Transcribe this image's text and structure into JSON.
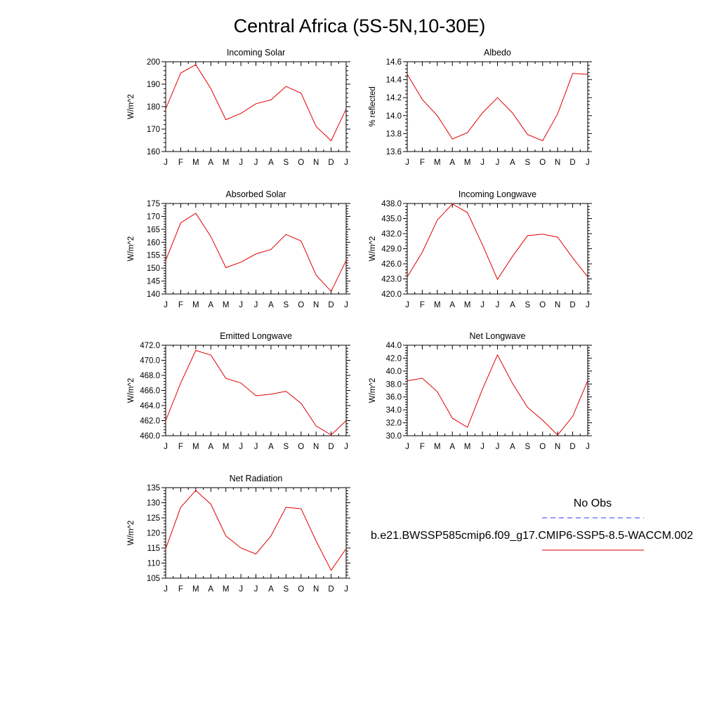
{
  "title": "Central Africa (5S-5N,10-30E)",
  "colors": {
    "model_line": "#e00000",
    "obs_line": "#3333ff",
    "axis": "#000000"
  },
  "legend": {
    "obs_label": "No Obs",
    "model_label": "b.e21.BWSSP585cmip6.f09_g17.CMIP6-SSP5-8.5-WACCM.002"
  },
  "chart_data": [
    {
      "type": "line",
      "title": "Incoming Solar",
      "xlabel": "",
      "ylabel": "W/m^2",
      "categories": [
        "J",
        "F",
        "M",
        "A",
        "M",
        "J",
        "J",
        "A",
        "S",
        "O",
        "N",
        "D",
        "J"
      ],
      "values": [
        179,
        195,
        198.7,
        188,
        174.2,
        177,
        181.3,
        183,
        189,
        186,
        171.2,
        164.8,
        179
      ],
      "ylim": [
        160,
        200
      ],
      "yticks": [
        160,
        170,
        180,
        190,
        200
      ],
      "ytick_labels": [
        "160",
        "170",
        "180",
        "190",
        "200"
      ],
      "grid": false
    },
    {
      "type": "line",
      "title": "Albedo",
      "xlabel": "",
      "ylabel": "% reflected",
      "categories": [
        "J",
        "F",
        "M",
        "A",
        "M",
        "J",
        "J",
        "A",
        "S",
        "O",
        "N",
        "D",
        "J"
      ],
      "values": [
        14.46,
        14.18,
        14.0,
        13.74,
        13.81,
        14.03,
        14.2,
        14.03,
        13.79,
        13.72,
        14.02,
        14.47,
        14.46
      ],
      "ylim": [
        13.6,
        14.6
      ],
      "yticks": [
        13.6,
        13.8,
        14.0,
        14.2,
        14.4,
        14.6
      ],
      "ytick_labels": [
        "13.6",
        "13.8",
        "14.0",
        "14.2",
        "14.4",
        "14.6"
      ],
      "grid": false
    },
    {
      "type": "line",
      "title": "Absorbed Solar",
      "xlabel": "",
      "ylabel": "W/m^2",
      "categories": [
        "J",
        "F",
        "M",
        "A",
        "M",
        "J",
        "J",
        "A",
        "S",
        "O",
        "N",
        "D",
        "J"
      ],
      "values": [
        153,
        167.5,
        171.2,
        162.2,
        150.2,
        152.3,
        155.5,
        157.2,
        163,
        160.5,
        147.3,
        141,
        153
      ],
      "ylim": [
        140,
        175
      ],
      "yticks": [
        140,
        145,
        150,
        155,
        160,
        165,
        170,
        175
      ],
      "ytick_labels": [
        "140",
        "145",
        "150",
        "155",
        "160",
        "165",
        "170",
        "175"
      ],
      "grid": false
    },
    {
      "type": "line",
      "title": "Incoming Longwave",
      "xlabel": "",
      "ylabel": "W/m^2",
      "categories": [
        "J",
        "F",
        "M",
        "A",
        "M",
        "J",
        "J",
        "A",
        "S",
        "O",
        "N",
        "D",
        "J"
      ],
      "values": [
        423.4,
        428.3,
        434.7,
        437.9,
        436.2,
        429.8,
        422.9,
        427.5,
        431.6,
        431.9,
        431.3,
        427.2,
        423.4
      ],
      "ylim": [
        420,
        438
      ],
      "yticks": [
        420,
        423,
        426,
        429,
        432,
        435,
        438
      ],
      "ytick_labels": [
        "420.0",
        "423.0",
        "426.0",
        "429.0",
        "432.0",
        "435.0",
        "438.0"
      ],
      "grid": false
    },
    {
      "type": "line",
      "title": "Emitted Longwave",
      "xlabel": "",
      "ylabel": "W/m^2",
      "categories": [
        "J",
        "F",
        "M",
        "A",
        "M",
        "J",
        "J",
        "A",
        "S",
        "O",
        "N",
        "D",
        "J"
      ],
      "values": [
        462,
        467,
        471.3,
        470.7,
        467.6,
        467,
        465.3,
        465.5,
        465.9,
        464.3,
        461.3,
        460.1,
        462
      ],
      "ylim": [
        460,
        472
      ],
      "yticks": [
        460,
        462,
        464,
        466,
        468,
        470,
        472
      ],
      "ytick_labels": [
        "460.0",
        "462.0",
        "464.0",
        "466.0",
        "468.0",
        "470.0",
        "472.0"
      ],
      "grid": false
    },
    {
      "type": "line",
      "title": "Net Longwave",
      "xlabel": "",
      "ylabel": "W/m^2",
      "categories": [
        "J",
        "F",
        "M",
        "A",
        "M",
        "J",
        "J",
        "A",
        "S",
        "O",
        "N",
        "D",
        "J"
      ],
      "values": [
        38.5,
        38.9,
        36.8,
        32.7,
        31.3,
        37.2,
        42.5,
        38.1,
        34.4,
        32.4,
        30.1,
        33.0,
        38.5
      ],
      "ylim": [
        30,
        44
      ],
      "yticks": [
        30,
        32,
        34,
        36,
        38,
        40,
        42,
        44
      ],
      "ytick_labels": [
        "30.0",
        "32.0",
        "34.0",
        "36.0",
        "38.0",
        "40.0",
        "42.0",
        "44.0"
      ],
      "grid": false
    },
    {
      "type": "line",
      "title": "Net Radiation",
      "xlabel": "",
      "ylabel": "W/m^2",
      "categories": [
        "J",
        "F",
        "M",
        "A",
        "M",
        "J",
        "J",
        "A",
        "S",
        "O",
        "N",
        "D",
        "J"
      ],
      "values": [
        114.8,
        128.5,
        134.1,
        129.5,
        119,
        115,
        113,
        119,
        128.5,
        128,
        117.3,
        107.6,
        114.8
      ],
      "ylim": [
        105,
        135
      ],
      "yticks": [
        105,
        110,
        115,
        120,
        125,
        130,
        135
      ],
      "ytick_labels": [
        "105",
        "110",
        "115",
        "120",
        "125",
        "130",
        "135"
      ],
      "grid": false
    }
  ]
}
